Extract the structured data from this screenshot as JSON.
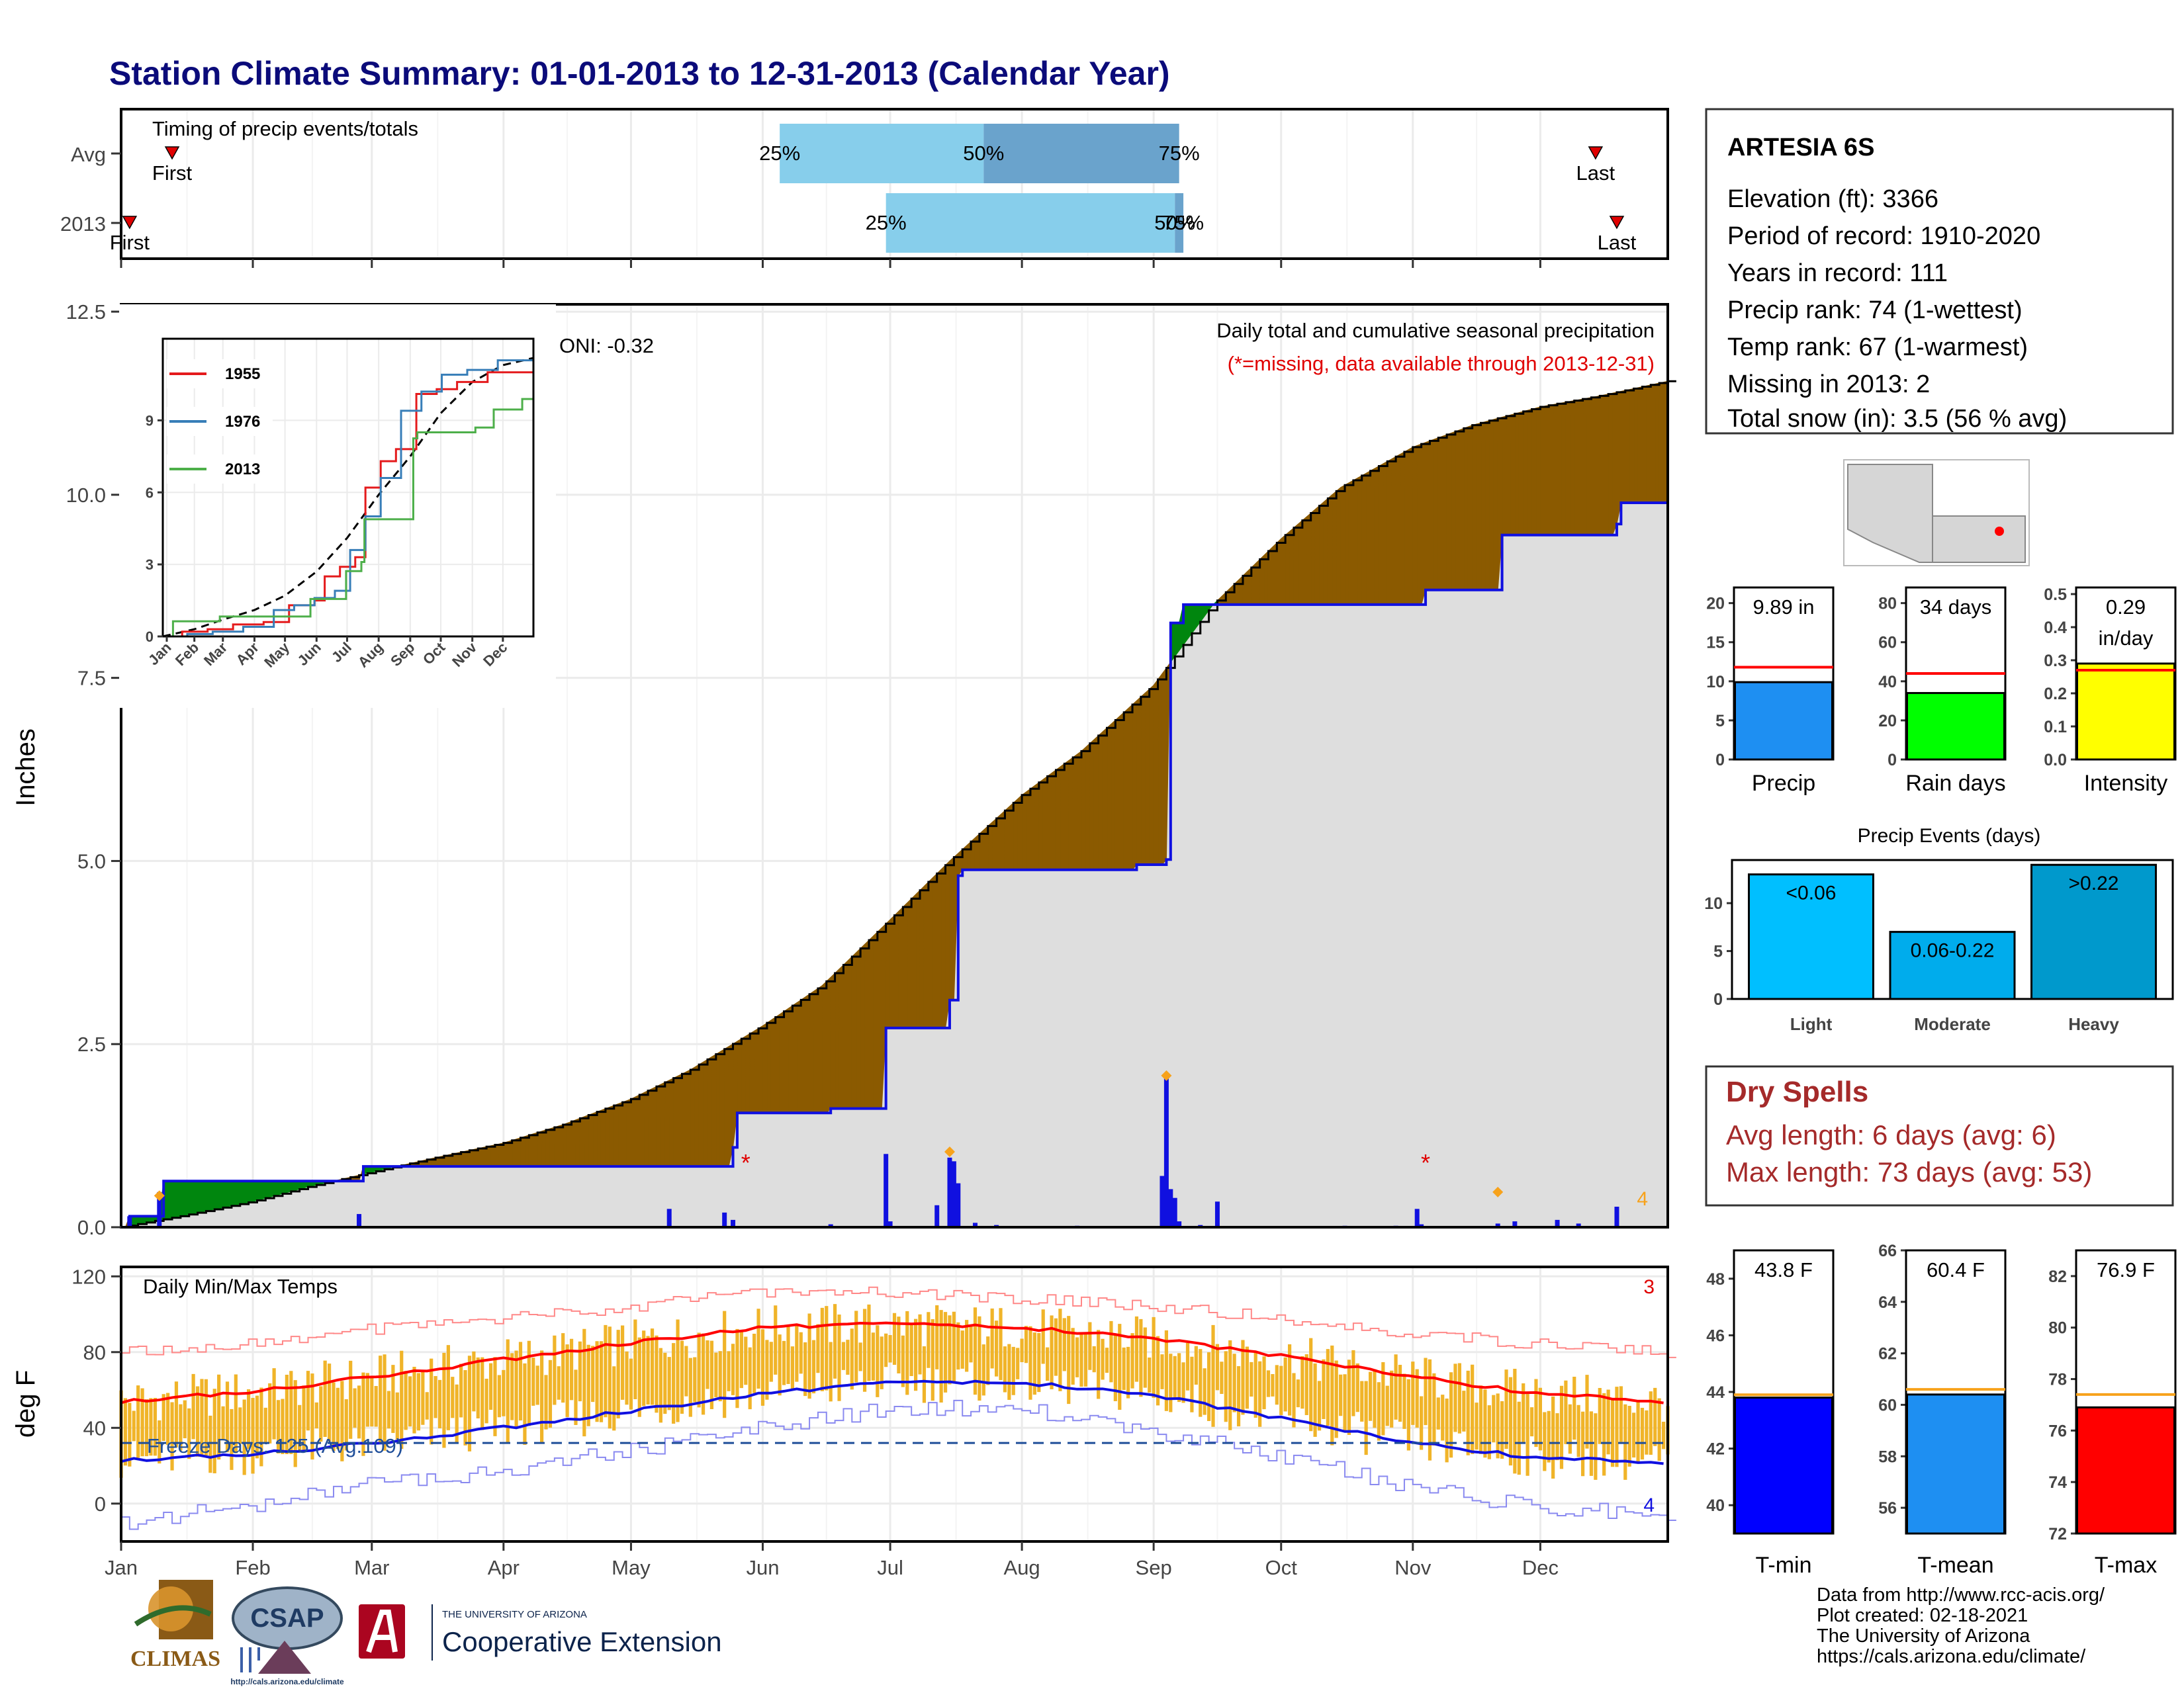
{
  "page": {
    "title": "Station Climate Summary: 01-01-2013 to 12-31-2013 (Calendar Year)"
  },
  "timing_panel": {
    "label": "Timing of precip events/totals",
    "rows": [
      {
        "name": "Avg",
        "first_day": 13,
        "last_day": 348,
        "p25_day": 156,
        "p50_day": 204,
        "p75_day": 250,
        "first_label": "First",
        "last_label": "Last",
        "p25_label": "25%",
        "p50_label": "50%",
        "p75_label": "75%"
      },
      {
        "name": "2013",
        "first_day": 3,
        "last_day": 353,
        "p25_day": 181,
        "p50_day": 249,
        "p75_day": 251,
        "first_label": "First",
        "last_label": "Last",
        "p25_label": "25%",
        "p50_label": "50%",
        "p75_label": "75%"
      }
    ]
  },
  "precip_panel": {
    "ylabel": "Inches",
    "ytick_labels": [
      "0.0",
      "2.5",
      "5.0",
      "7.5",
      "10.0",
      "12.5"
    ],
    "ytick_values": [
      0,
      2.5,
      5,
      7.5,
      10,
      12.5
    ],
    "ylim": [
      0,
      12.6
    ],
    "caption_line1": "Daily total and cumulative seasonal precipitation",
    "caption_line2": "(*=missing, data available through 2013-12-31)",
    "oni_text": "ONI: -0.32",
    "corner_count": "4",
    "missing_marker": "*",
    "colors": {
      "above": "#00860e",
      "below": "#8b5a00",
      "cumulative_line": "#1010e0",
      "fill_2013": "#dedede",
      "missing": "#e00000",
      "extreme": "#f7a21b"
    }
  },
  "inset": {
    "legend": [
      {
        "name": "1955",
        "color": "#e41a1c"
      },
      {
        "name": "1976",
        "color": "#377eb8"
      },
      {
        "name": "2013",
        "color": "#4daf4a"
      }
    ],
    "ytick_labels": [
      "0",
      "3",
      "6",
      "9"
    ],
    "xtick_labels": [
      "Jan",
      "Feb",
      "Mar",
      "Apr",
      "May",
      "Jun",
      "Jul",
      "Aug",
      "Sep",
      "Oct",
      "Nov",
      "Dec"
    ]
  },
  "temp_panel": {
    "label": "Daily Min/Max Temps",
    "ylabel": "deg F",
    "ytick_labels": [
      "0",
      "40",
      "80",
      "120"
    ],
    "ytick_values": [
      0,
      40,
      80,
      120
    ],
    "ylim": [
      -20,
      125
    ],
    "freeze_label": "Freeze Days: 125 (Avg:109)",
    "count_max": "3",
    "count_min": "4",
    "colors": {
      "bars": "#f0b429",
      "avg_max": "#ff0000",
      "avg_min": "#1010e0",
      "rec_max": "#ff8888",
      "rec_min": "#8a8af0",
      "freeze": "#1f4e99"
    }
  },
  "x_months": [
    "Jan",
    "Feb",
    "Mar",
    "Apr",
    "May",
    "Jun",
    "Jul",
    "Aug",
    "Sep",
    "Oct",
    "Nov",
    "Dec"
  ],
  "station_box": {
    "name": "ARTESIA 6S",
    "lines": [
      "Elevation (ft): 3366",
      "Period of record: 1910-2020",
      "Years in record: 111",
      "Precip rank: 74 (1-wettest)",
      "Temp rank: 67 (1-warmest)",
      "Missing in 2013: 2",
      "Total snow (in): 3.5 (56 % avg)"
    ]
  },
  "mini_bars": [
    {
      "name": "Precip",
      "value": 9.89,
      "avg": 11.8,
      "label": "9.89 in",
      "ymax": 22,
      "ticks": [
        "0",
        "5",
        "10",
        "15",
        "20"
      ],
      "tick_values": [
        0,
        5,
        10,
        15,
        20
      ],
      "color": "#1e8ff2"
    },
    {
      "name": "Rain days",
      "value": 34,
      "avg": 44,
      "label": "34 days",
      "ymax": 88,
      "ticks": [
        "0",
        "20",
        "40",
        "60",
        "80"
      ],
      "tick_values": [
        0,
        20,
        40,
        60,
        80
      ],
      "color": "#00ff00"
    },
    {
      "name": "Intensity",
      "value": 0.29,
      "avg": 0.27,
      "label": "0.29",
      "label2": "in/day",
      "ymax": 0.52,
      "ticks": [
        "0.0",
        "0.1",
        "0.2",
        "0.3",
        "0.4",
        "0.5"
      ],
      "tick_values": [
        0,
        0.1,
        0.2,
        0.3,
        0.4,
        0.5
      ],
      "color": "#ffff00"
    }
  ],
  "precip_events": {
    "title": "Precip Events (days)",
    "bars": [
      {
        "name": "Light",
        "value": 13,
        "label": "<0.06",
        "color": "#00bfff"
      },
      {
        "name": "Moderate",
        "value": 7,
        "label": "0.06-0.22",
        "color": "#00acec"
      },
      {
        "name": "Heavy",
        "value": 14,
        "label": ">0.22",
        "color": "#0099cc"
      }
    ],
    "ticks": [
      "0",
      "5",
      "10"
    ],
    "tick_values": [
      0,
      5,
      10
    ],
    "ymax": 14.5
  },
  "dry_spells": {
    "title": "Dry Spells",
    "avg": "Avg length: 6 days (avg: 6)",
    "max": "Max length: 73 days (avg: 53)",
    "color": "#a52a2a"
  },
  "temp_bars": [
    {
      "name": "T-min",
      "value": 43.8,
      "avg": 43.9,
      "label": "43.8 F",
      "ymin": 39,
      "ymax": 49,
      "ticks": [
        "40",
        "42",
        "44",
        "46",
        "48"
      ],
      "tick_values": [
        40,
        42,
        44,
        46,
        48
      ],
      "color": "#0000ff"
    },
    {
      "name": "T-mean",
      "value": 60.4,
      "avg": 60.6,
      "label": "60.4 F",
      "ymin": 55,
      "ymax": 66,
      "ticks": [
        "56",
        "58",
        "60",
        "62",
        "64",
        "66"
      ],
      "tick_values": [
        56,
        58,
        60,
        62,
        64,
        66
      ],
      "color": "#1e8ff2"
    },
    {
      "name": "T-max",
      "value": 76.9,
      "avg": 77.4,
      "label": "76.9 F",
      "ymin": 72,
      "ymax": 83,
      "ticks": [
        "72",
        "74",
        "76",
        "78",
        "80",
        "82"
      ],
      "tick_values": [
        72,
        74,
        76,
        78,
        80,
        82
      ],
      "color": "#ff0000"
    }
  ],
  "footer": {
    "lines": [
      "Data from http://www.rcc-acis.org/",
      "Plot created: 02-18-2021",
      "The University of Arizona",
      "https://cals.arizona.edu/climate/"
    ],
    "climas": "CLIMAS",
    "csap": "CSAP",
    "csap_url": "http://cals.arizona.edu/climate",
    "ua_top": "THE UNIVERSITY OF ARIZONA",
    "ua_bottom": "Cooperative Extension"
  },
  "chart_data": {
    "type": "area",
    "title": "Station Climate Summary: 01-01-2013 to 12-31-2013 (Calendar Year)",
    "xlabel": "",
    "ylabel": "Inches",
    "ylim": [
      0,
      12.6
    ],
    "x_unit": "day of year 2013",
    "avg_cumulative": {
      "x": [
        1,
        15,
        32,
        45,
        60,
        75,
        91,
        105,
        121,
        135,
        152,
        166,
        182,
        196,
        213,
        227,
        244,
        258,
        274,
        288,
        305,
        319,
        335,
        349,
        365
      ],
      "values": [
        0.0,
        0.15,
        0.35,
        0.55,
        0.75,
        0.95,
        1.15,
        1.4,
        1.75,
        2.15,
        2.75,
        3.3,
        4.2,
        5.0,
        5.9,
        6.5,
        7.4,
        8.5,
        9.4,
        10.1,
        10.65,
        10.95,
        11.2,
        11.35,
        11.55
      ]
    },
    "cumulative_2013": {
      "x": [
        1,
        3,
        10,
        11,
        57,
        58,
        131,
        145,
        146,
        168,
        180,
        181,
        196,
        198,
        199,
        240,
        247,
        248,
        250,
        251,
        308,
        325,
        326,
        353,
        354,
        365
      ],
      "values": [
        0.0,
        0.15,
        0.15,
        0.63,
        0.63,
        0.83,
        0.83,
        1.09,
        1.56,
        1.62,
        1.62,
        2.72,
        3.1,
        4.8,
        4.88,
        4.95,
        5.02,
        8.25,
        8.25,
        8.5,
        8.7,
        8.7,
        9.45,
        9.6,
        9.89,
        9.89
      ]
    },
    "daily_precip": {
      "x": [
        3,
        10,
        57,
        130,
        143,
        145,
        168,
        181,
        182,
        193,
        196,
        197,
        198,
        202,
        207,
        226,
        246,
        247,
        248,
        249,
        250,
        255,
        259,
        289,
        301,
        306,
        307,
        325,
        329,
        339,
        344,
        353
      ],
      "values": [
        0.15,
        0.48,
        0.18,
        0.25,
        0.2,
        0.1,
        0.04,
        1.0,
        0.08,
        0.3,
        0.95,
        0.9,
        0.6,
        0.06,
        0.03,
        0.02,
        0.7,
        2.05,
        0.52,
        0.4,
        0.08,
        0.03,
        0.35,
        0.02,
        0.02,
        0.25,
        0.04,
        0.05,
        0.08,
        0.1,
        0.05,
        0.28
      ]
    },
    "extreme_markers": {
      "x": [
        10,
        196,
        247,
        325
      ],
      "values": [
        0.43,
        1.03,
        2.07,
        0.48
      ]
    },
    "missing_days": [
      148,
      308
    ],
    "inset_series": [
      {
        "name": "Avg",
        "x": [
          1,
          32,
          60,
          91,
          121,
          152,
          182,
          213,
          244,
          274,
          305,
          335,
          365
        ],
        "values": [
          0,
          0.3,
          0.7,
          1.1,
          1.7,
          2.7,
          4.1,
          5.9,
          7.5,
          9.3,
          10.6,
          11.3,
          11.6
        ]
      },
      {
        "name": "1955",
        "x": [
          1,
          20,
          45,
          70,
          100,
          125,
          150,
          160,
          175,
          190,
          200,
          215,
          230,
          250,
          270,
          290,
          320,
          365
        ],
        "values": [
          0,
          0.2,
          0.3,
          0.5,
          0.6,
          1.3,
          1.5,
          2.5,
          2.9,
          3.3,
          6.2,
          7.3,
          7.8,
          10.1,
          10.3,
          10.6,
          11.0,
          11.0
        ]
      },
      {
        "name": "1976",
        "x": [
          1,
          25,
          50,
          80,
          110,
          130,
          150,
          170,
          185,
          200,
          215,
          235,
          255,
          275,
          300,
          330,
          365
        ],
        "values": [
          0,
          0.1,
          0.2,
          0.4,
          1.1,
          1.3,
          1.6,
          1.9,
          3.6,
          5.0,
          6.6,
          9.4,
          10.2,
          10.9,
          11.1,
          11.5,
          11.5
        ]
      },
      {
        "name": "2013",
        "x": [
          1,
          11,
          57,
          131,
          146,
          181,
          196,
          199,
          247,
          251,
          308,
          326,
          354,
          365
        ],
        "values": [
          0,
          0.63,
          0.83,
          0.83,
          1.56,
          2.72,
          3.1,
          4.88,
          8.25,
          8.5,
          8.7,
          9.45,
          9.89,
          9.89
        ]
      }
    ],
    "temperature": {
      "ylim": [
        -20,
        125
      ],
      "avg_max": {
        "x": [
          1,
          32,
          60,
          91,
          121,
          152,
          182,
          213,
          244,
          274,
          305,
          335,
          365
        ],
        "values": [
          54,
          59,
          67,
          76,
          85,
          93,
          95,
          93,
          87,
          78,
          67,
          58,
          54
        ]
      },
      "avg_min": {
        "x": [
          1,
          32,
          60,
          91,
          121,
          152,
          182,
          213,
          244,
          274,
          305,
          335,
          365
        ],
        "values": [
          23,
          26,
          32,
          40,
          49,
          58,
          64,
          64,
          57,
          45,
          32,
          24,
          22
        ]
      },
      "record_max": {
        "x": [
          1,
          32,
          60,
          91,
          121,
          152,
          182,
          213,
          244,
          274,
          305,
          335,
          365
        ],
        "values": [
          80,
          85,
          92,
          98,
          104,
          112,
          112,
          108,
          104,
          98,
          90,
          84,
          80
        ]
      },
      "record_min": {
        "x": [
          1,
          32,
          60,
          91,
          121,
          152,
          182,
          213,
          244,
          274,
          305,
          335,
          365
        ],
        "values": [
          -10,
          0,
          10,
          18,
          28,
          40,
          50,
          50,
          38,
          25,
          8,
          -2,
          -5
        ]
      },
      "freeze_threshold": 32
    }
  }
}
